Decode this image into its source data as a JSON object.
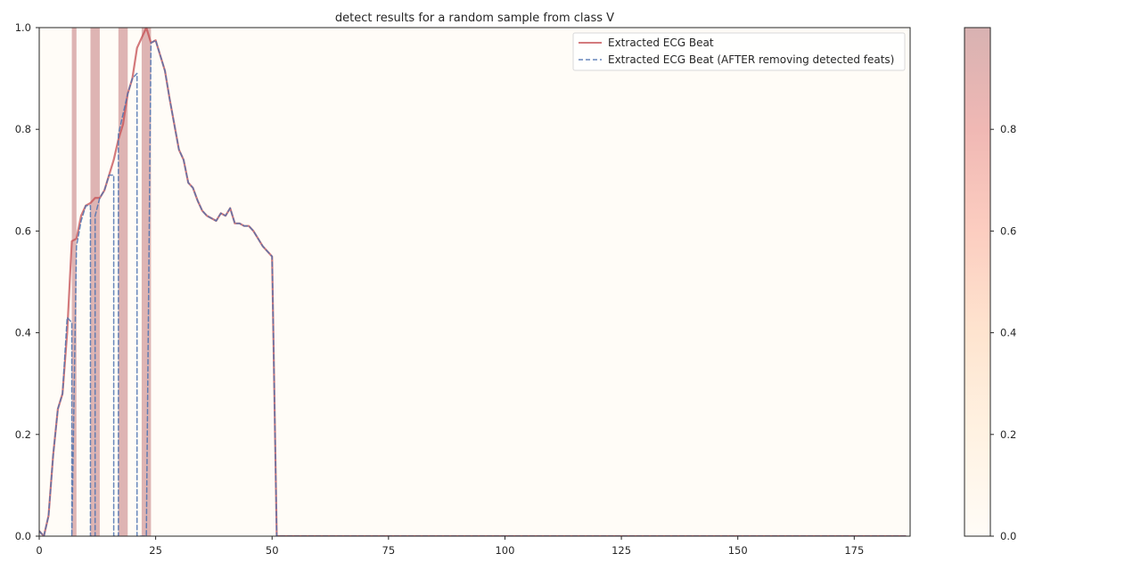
{
  "chart_data": {
    "type": "line",
    "title": "detect results for a random sample from class V",
    "xlabel": "",
    "ylabel": "",
    "xlim": [
      0,
      187
    ],
    "ylim": [
      0,
      1.0
    ],
    "x_ticks": [
      0,
      25,
      50,
      75,
      100,
      125,
      150,
      175
    ],
    "y_ticks": [
      0.0,
      0.2,
      0.4,
      0.6,
      0.8,
      1.0
    ],
    "x_tick_labels": [
      "0",
      "25",
      "50",
      "75",
      "100",
      "125",
      "150",
      "175"
    ],
    "y_tick_labels": [
      "0.0",
      "0.2",
      "0.4",
      "0.6",
      "0.8",
      "1.0"
    ],
    "grid": false,
    "legend_position": "top-right",
    "background_tint": "#fffcf7",
    "series": [
      {
        "name": "Extracted ECG Beat",
        "color": "#c44e52",
        "style": "solid",
        "x": [
          0,
          1,
          2,
          3,
          4,
          5,
          6,
          7,
          8,
          9,
          10,
          11,
          12,
          13,
          14,
          15,
          16,
          17,
          18,
          19,
          20,
          21,
          22,
          23,
          24,
          25,
          26,
          27,
          28,
          29,
          30,
          31,
          32,
          33,
          34,
          35,
          36,
          37,
          38,
          39,
          40,
          41,
          42,
          43,
          44,
          45,
          46,
          47,
          48,
          49,
          50,
          51,
          52,
          186
        ],
        "values": [
          0.01,
          0.0,
          0.04,
          0.16,
          0.25,
          0.28,
          0.4,
          0.58,
          0.585,
          0.63,
          0.65,
          0.655,
          0.665,
          0.665,
          0.68,
          0.71,
          0.74,
          0.78,
          0.81,
          0.87,
          0.9,
          0.96,
          0.98,
          1.0,
          0.97,
          0.975,
          0.945,
          0.915,
          0.86,
          0.81,
          0.76,
          0.74,
          0.695,
          0.685,
          0.66,
          0.64,
          0.63,
          0.625,
          0.62,
          0.635,
          0.63,
          0.645,
          0.615,
          0.615,
          0.61,
          0.61,
          0.6,
          0.585,
          0.57,
          0.56,
          0.55,
          0.0,
          0.0,
          0.0
        ]
      },
      {
        "name": "Extracted ECG Beat (AFTER removing detected feats)",
        "color": "#4c72b0",
        "style": "dashed",
        "x": [
          0,
          1,
          2,
          3,
          4,
          5,
          6,
          7,
          7,
          8,
          9,
          10,
          11,
          11,
          12,
          12,
          13,
          14,
          15,
          16,
          16,
          17,
          17,
          18,
          19,
          20,
          21,
          21,
          22,
          22,
          23,
          23,
          24,
          25,
          26,
          27,
          28,
          29,
          30,
          31,
          32,
          33,
          34,
          35,
          36,
          37,
          38,
          39,
          40,
          41,
          42,
          43,
          44,
          45,
          46,
          47,
          48,
          49,
          50,
          51,
          52,
          186
        ],
        "values": [
          0.01,
          0.0,
          0.04,
          0.16,
          0.25,
          0.28,
          0.43,
          0.42,
          0.0,
          0.57,
          0.62,
          0.65,
          0.65,
          0.0,
          0.0,
          0.63,
          0.665,
          0.68,
          0.71,
          0.71,
          0.0,
          0.0,
          0.79,
          0.83,
          0.87,
          0.9,
          0.91,
          0.0,
          0.0,
          0.0,
          0.0,
          0.0,
          0.97,
          0.975,
          0.945,
          0.915,
          0.86,
          0.81,
          0.76,
          0.74,
          0.695,
          0.685,
          0.66,
          0.64,
          0.63,
          0.625,
          0.62,
          0.635,
          0.63,
          0.645,
          0.615,
          0.615,
          0.61,
          0.61,
          0.6,
          0.585,
          0.57,
          0.56,
          0.55,
          0.0,
          0.0,
          0.0
        ]
      }
    ],
    "highlight_bands": [
      {
        "x0": 7.0,
        "x1": 8.0,
        "intensity": 0.95
      },
      {
        "x0": 11.0,
        "x1": 13.0,
        "intensity": 0.95
      },
      {
        "x0": 17.0,
        "x1": 19.0,
        "intensity": 0.95
      },
      {
        "x0": 22.0,
        "x1": 24.0,
        "intensity": 0.95
      }
    ],
    "colorbar": {
      "range": [
        0,
        1.0
      ],
      "ticks": [
        0.0,
        0.2,
        0.4,
        0.6,
        0.8
      ],
      "tick_labels": [
        "0.0",
        "0.2",
        "0.4",
        "0.6",
        "0.8"
      ],
      "colormap": "OrRd_muted",
      "stops": [
        {
          "v": 0.0,
          "color": "#fffcf7"
        },
        {
          "v": 0.2,
          "color": "#fff2e2"
        },
        {
          "v": 0.4,
          "color": "#fee4cf"
        },
        {
          "v": 0.6,
          "color": "#fccdc0"
        },
        {
          "v": 0.8,
          "color": "#f0b8b4"
        },
        {
          "v": 1.0,
          "color": "#d8b2b2"
        }
      ]
    }
  }
}
